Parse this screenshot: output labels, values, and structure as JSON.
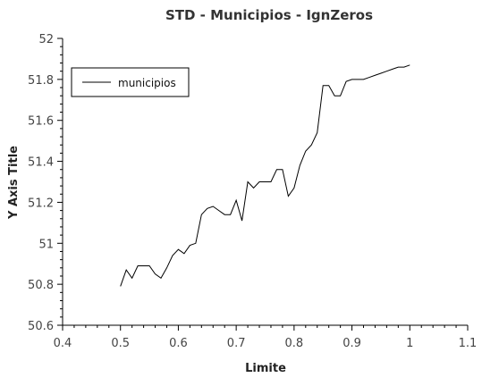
{
  "chart_data": {
    "type": "line",
    "title": "STD - Municipios - IgnZeros",
    "xlabel": "Limite",
    "ylabel": "Y Axis Title",
    "xlim": [
      0.4,
      1.1
    ],
    "ylim": [
      50.6,
      52.0
    ],
    "xticks": [
      "0.4",
      "0.5",
      "0.6",
      "0.7",
      "0.8",
      "0.9",
      "1",
      "1.1"
    ],
    "yticks": [
      "50.6",
      "50.8",
      "51",
      "51.2",
      "51.4",
      "51.6",
      "51.8",
      "52"
    ],
    "legend": "top-left",
    "grid": false,
    "series": [
      {
        "name": "municipios",
        "color": "#000000",
        "x": [
          0.5,
          0.51,
          0.52,
          0.53,
          0.54,
          0.55,
          0.56,
          0.57,
          0.58,
          0.59,
          0.6,
          0.61,
          0.62,
          0.63,
          0.64,
          0.65,
          0.66,
          0.67,
          0.68,
          0.69,
          0.7,
          0.71,
          0.72,
          0.73,
          0.74,
          0.75,
          0.76,
          0.77,
          0.78,
          0.79,
          0.8,
          0.81,
          0.82,
          0.83,
          0.84,
          0.85,
          0.86,
          0.87,
          0.88,
          0.89,
          0.9,
          0.91,
          0.92,
          0.93,
          0.94,
          0.95,
          0.96,
          0.97,
          0.98,
          0.99,
          1.0
        ],
        "y": [
          50.79,
          50.87,
          50.83,
          50.89,
          50.89,
          50.89,
          50.85,
          50.83,
          50.88,
          50.94,
          50.97,
          50.95,
          50.99,
          51.0,
          51.14,
          51.17,
          51.18,
          51.16,
          51.14,
          51.14,
          51.21,
          51.11,
          51.3,
          51.27,
          51.3,
          51.3,
          51.3,
          51.36,
          51.36,
          51.23,
          51.27,
          51.38,
          51.45,
          51.48,
          51.54,
          51.77,
          51.77,
          51.72,
          51.72,
          51.79,
          51.8,
          51.8,
          51.8,
          51.81,
          51.82,
          51.83,
          51.84,
          51.85,
          51.86,
          51.86,
          51.87
        ]
      }
    ]
  }
}
